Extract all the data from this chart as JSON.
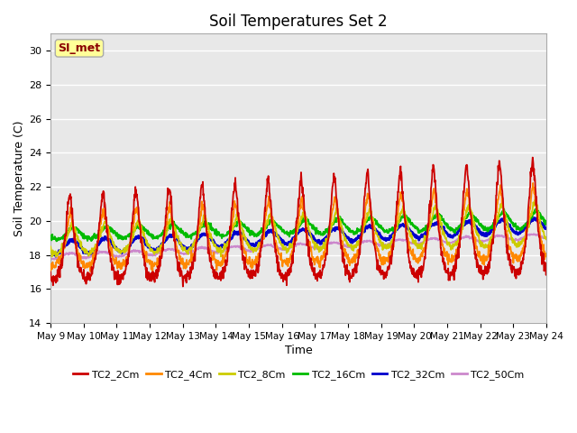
{
  "title": "Soil Temperatures Set 2",
  "xlabel": "Time",
  "ylabel": "Soil Temperature (C)",
  "annotation_text": "SI_met",
  "ylim": [
    14,
    31
  ],
  "yticks": [
    14,
    16,
    18,
    20,
    22,
    24,
    26,
    28,
    30
  ],
  "x_tick_labels": [
    "May 9",
    "May 10",
    "May 11",
    "May 12",
    "May 13",
    "May 14",
    "May 15",
    "May 16",
    "May 17",
    "May 18",
    "May 19",
    "May 20",
    "May 21",
    "May 22",
    "May 23",
    "May 24"
  ],
  "bg_color": "#e8e8e8",
  "series_colors": [
    "#cc0000",
    "#ff8800",
    "#cccc00",
    "#00bb00",
    "#0000cc",
    "#cc88cc"
  ],
  "series_labels": [
    "TC2_2Cm",
    "TC2_4Cm",
    "TC2_8Cm",
    "TC2_16Cm",
    "TC2_32Cm",
    "TC2_50Cm"
  ],
  "linewidths": [
    1.3,
    1.3,
    1.3,
    1.5,
    2.0,
    1.3
  ]
}
